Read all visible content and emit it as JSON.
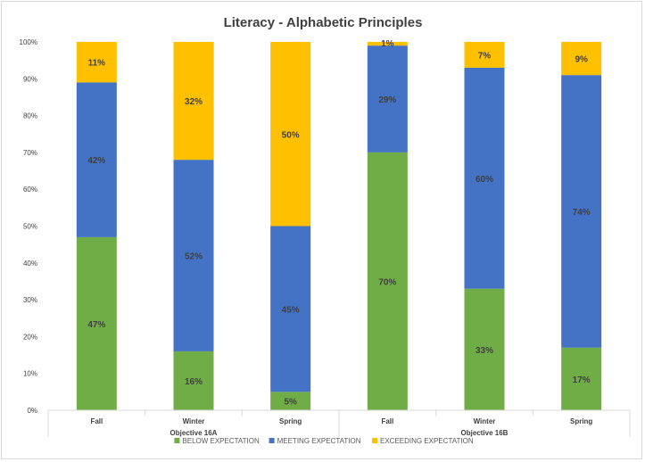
{
  "chart_data": {
    "type": "bar",
    "stacked": true,
    "percent_stacked": true,
    "title": "Literacy - Alphabetic Principles",
    "xlabel": "",
    "ylabel": "",
    "ylim": [
      0,
      100
    ],
    "y_ticks": [
      "0%",
      "10%",
      "20%",
      "30%",
      "40%",
      "50%",
      "60%",
      "70%",
      "80%",
      "90%",
      "100%"
    ],
    "grid": false,
    "legend_position": "bottom",
    "categories": [
      "Fall",
      "Winter",
      "Spring",
      "Fall",
      "Winter",
      "Spring"
    ],
    "groups": [
      {
        "label": "Objective 16A",
        "categories": [
          0,
          1,
          2
        ]
      },
      {
        "label": "Objective 16B",
        "categories": [
          3,
          4,
          5
        ]
      }
    ],
    "series": [
      {
        "name": "BELOW EXPECTATION",
        "color": "#70ad47",
        "values": [
          47,
          16,
          5,
          70,
          33,
          17
        ],
        "labels": [
          "47%",
          "16%",
          "5%",
          "70%",
          "33%",
          "17%"
        ]
      },
      {
        "name": "MEETING EXPECTATION",
        "color": "#4472c4",
        "values": [
          42,
          52,
          45,
          29,
          60,
          74
        ],
        "labels": [
          "42%",
          "52%",
          "45%",
          "29%",
          "60%",
          "74%"
        ]
      },
      {
        "name": "EXCEEDING EXPECTATION",
        "color": "#ffc000",
        "values": [
          11,
          32,
          50,
          1,
          7,
          9
        ],
        "labels": [
          "11%",
          "32%",
          "50%",
          "1%",
          "7%",
          "9%"
        ]
      }
    ]
  }
}
